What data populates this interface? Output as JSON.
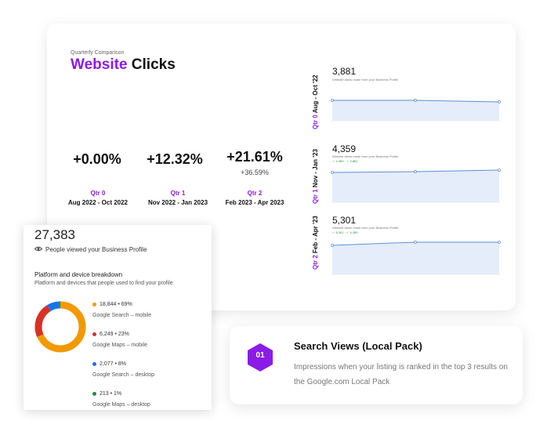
{
  "header": {
    "kicker": "Quarterly Comparison",
    "title_accent": "Website",
    "title_rest": " Clicks"
  },
  "metrics": [
    {
      "pct": "+0.00%",
      "sub": "",
      "quarter": "Qtr 0",
      "dates": "Aug 2022 - Oct 2022"
    },
    {
      "pct": "+12.32%",
      "sub": "",
      "quarter": "Qtr 1",
      "dates": "Nov 2022 - Jan 2023"
    },
    {
      "pct": "+21.61%",
      "sub": "+36.59%",
      "quarter": "Qtr 2",
      "dates": "Feb 2023 - Apr 2023"
    }
  ],
  "mini_charts": [
    {
      "quarter": "Qtr 0",
      "range": "Aug - Oct '22",
      "value": "3,881",
      "caption": "Website clicks made from your Business Profile",
      "legend": ""
    },
    {
      "quarter": "Qtr 1",
      "range": "Nov - Jan '23",
      "value": "4,359",
      "caption": "Website clicks made from your Business Profile",
      "legend": "✓ 4,359 · ✓ 3,881"
    },
    {
      "quarter": "Qtr 2",
      "range": "Feb - Apr '23",
      "value": "5,301",
      "caption": "Website clicks made from your Business Profile",
      "legend": "✓ 5,301 · ✓ 4,359"
    }
  ],
  "profile": {
    "total": "27,383",
    "viewed_label": "People viewed your Business Profile",
    "breakdown_title": "Platform and device breakdown",
    "breakdown_sub": "Platform and devices that people used to find your profile",
    "items": [
      {
        "stat": "18,844 • 69%",
        "label": "Google Search – mobile",
        "color": "#f29900"
      },
      {
        "stat": "6,249 • 23%",
        "label": "Google Maps – mobile",
        "color": "#d93025"
      },
      {
        "stat": "2,077 • 8%",
        "label": "Google Search – desktop",
        "color": "#1a73e8"
      },
      {
        "stat": "213 • 1%",
        "label": "Google Maps – desktop",
        "color": "#1e8e3e"
      }
    ]
  },
  "info": {
    "number": "01",
    "title": "Search Views (Local Pack)",
    "description": "Impressions when your listing is ranked in the top 3 results on the Google.com Local Pack"
  },
  "colors": {
    "accent": "#8a1ce6",
    "chart_line": "#5b8fd6",
    "chart_fill": "#e5ecfa"
  }
}
